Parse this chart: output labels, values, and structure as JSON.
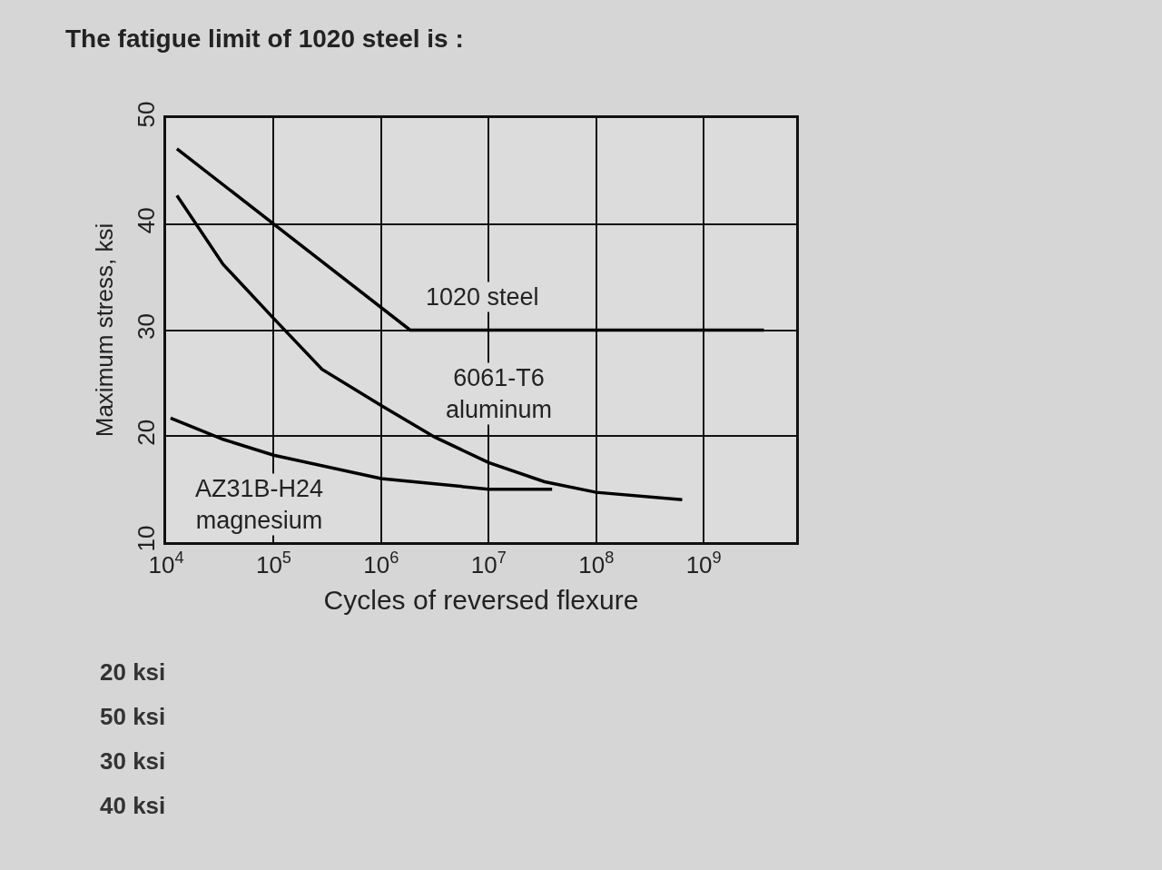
{
  "chart_data": {
    "type": "line",
    "title": "The fatigue limit of 1020 steel is :",
    "xlabel": "Cycles of reversed flexure",
    "ylabel": "Maximum stress, ksi",
    "log": "x",
    "grid": true,
    "marker": "none",
    "line_style": "solid",
    "xlim": [
      10000,
      7240000000
    ],
    "ylim": [
      10,
      50
    ],
    "xticks": [
      {
        "value": 10000,
        "label": "10$^{4}$"
      },
      {
        "value": 100000,
        "label": "10$^{5}$"
      },
      {
        "value": 1000000,
        "label": "10$^{6}$"
      },
      {
        "value": 10000000,
        "label": "10$^{7}$"
      },
      {
        "value": 100000000,
        "label": "10$^{8}$"
      },
      {
        "value": 1000000000,
        "label": "10$^{9}$"
      }
    ],
    "yticks": [
      10,
      20,
      30,
      40,
      50
    ],
    "series": [
      {
        "color": "#000000",
        "x": [
          12600,
          1860000,
          3630000000
        ],
        "values": [
          47.1,
          30,
          30
        ]
      },
      {
        "color": "#000000",
        "x": [
          12600,
          33900,
          100000,
          282000,
          1000000,
          3160000,
          10000000,
          33100000,
          100000000,
          631000000
        ],
        "values": [
          42.7,
          36.2,
          31.1,
          26.3,
          22.9,
          19.9,
          17.5,
          15.7,
          14.7,
          14.0
        ]
      },
      {
        "color": "#000000",
        "x": [
          11000,
          33900,
          100000,
          1000000,
          10000000,
          38900000
        ],
        "values": [
          21.7,
          19.7,
          18.2,
          16.0,
          15.0,
          15.0
        ]
      }
    ],
    "annotations": [
      "1020 steel",
      "6061-T6\naluminum",
      "AZ31B-H24\nmagnesium",
      "20 ksi",
      "50 ksi",
      "30 ksi",
      "40 ksi"
    ]
  }
}
